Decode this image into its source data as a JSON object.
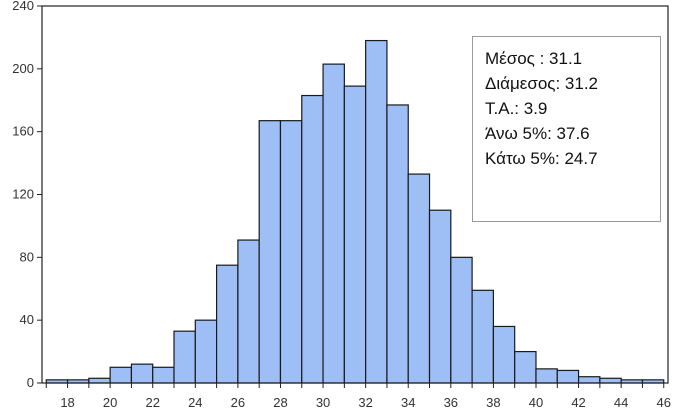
{
  "chart_data": {
    "type": "bar",
    "x_bin_edges": [
      17,
      18,
      19,
      20,
      21,
      22,
      23,
      24,
      25,
      26,
      27,
      28,
      29,
      30,
      31,
      32,
      33,
      34,
      35,
      36,
      37,
      38,
      39,
      40,
      41,
      42,
      43,
      44,
      45,
      46
    ],
    "values": [
      2,
      2,
      3,
      10,
      12,
      10,
      33,
      40,
      75,
      91,
      167,
      167,
      183,
      203,
      189,
      218,
      177,
      133,
      110,
      80,
      59,
      36,
      20,
      9,
      8,
      4,
      3,
      2,
      2
    ],
    "xlim": [
      16.8,
      46.2
    ],
    "ylim": [
      0,
      240
    ],
    "x_ticks": [
      "18",
      "20",
      "22",
      "24",
      "26",
      "28",
      "30",
      "32",
      "34",
      "36",
      "38",
      "40",
      "42",
      "44",
      "46"
    ],
    "y_ticks": [
      "0",
      "40",
      "80",
      "120",
      "160",
      "200",
      "240"
    ],
    "bar_color": "#9ebff5",
    "bar_edge_color": "#1a1a1a",
    "grid": false,
    "legend_placement": "top-right",
    "stats": [
      "Μέσος : 31.1",
      "Διάμεσος: 31.2",
      "Τ.Α.: 3.9",
      "Άνω 5%: 37.6",
      "Κάτω 5%: 24.7"
    ]
  }
}
